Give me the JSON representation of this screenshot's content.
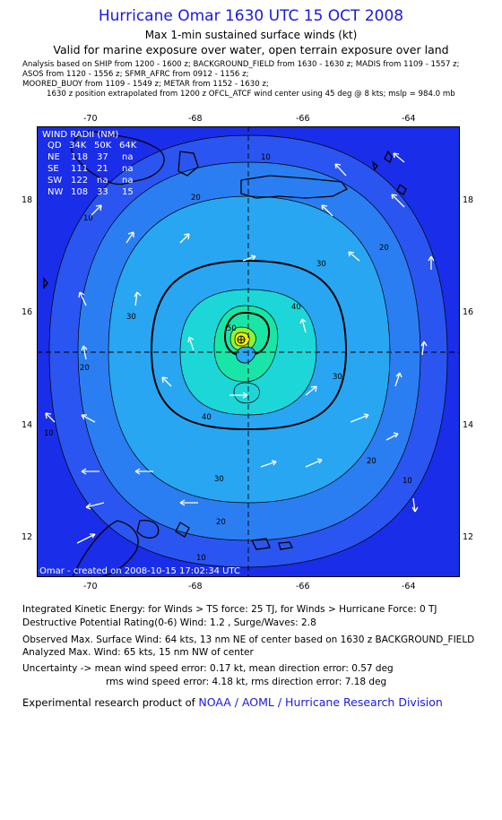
{
  "title": "Hurricane Omar 1630 UTC 15 OCT 2008",
  "subtitle": "Max 1-min sustained surface winds (kt)",
  "validity": "Valid for marine exposure over water, open terrain exposure over land",
  "analysis_lines": [
    "Analysis based on   SHIP from 1200 - 1600 z;   BACKGROUND_FIELD from 1630 - 1630 z;   MADIS from 1109 - 1557 z;",
    "ASOS from 1120 - 1556 z;   SFMR_AFRC from 0912 - 1156 z;",
    "MOORED_BUOY from 1109 - 1549 z;   METAR from 1152 - 1630 z;",
    "1630 z position extrapolated from 1200 z OFCL_ATCF wind center using 45 deg @ 8 kts;  mslp = 984.0 mb"
  ],
  "map": {
    "lon_ticks": [
      "-70",
      "-68",
      "-66",
      "-64"
    ],
    "lat_ticks": [
      "18",
      "16",
      "14",
      "12"
    ],
    "wind_radii": {
      "header": "WIND RADII (NM)",
      "columns": [
        "QD",
        "34K",
        "50K",
        "64K"
      ],
      "rows": [
        [
          "NE",
          "118",
          "37",
          "na"
        ],
        [
          "SE",
          "111",
          "21",
          "na"
        ],
        [
          "SW",
          "122",
          "na",
          "na"
        ],
        [
          "NW",
          "108",
          "33",
          "15"
        ]
      ]
    },
    "contour_labels": [
      "10",
      "10",
      "10",
      "10",
      "10",
      "20",
      "20",
      "20",
      "20",
      "20",
      "30",
      "30",
      "30",
      "30",
      "40",
      "40",
      "50"
    ],
    "credit": "Omar - created on 2008-10-15 17:02:34 UTC",
    "colors": {
      "ocean_outer": "#1a2de8",
      "band_10": "#2a55f0",
      "band_20": "#2a7ef2",
      "band_30": "#28a6f2",
      "band_40": "#1dd6d8",
      "band_50": "#19e6a6",
      "band_60": "#8ef23a",
      "band_64": "#f0f000"
    }
  },
  "footer": {
    "ike": "Integrated Kinetic Energy:  for Winds > TS force: 25 TJ,  for Winds > Hurricane Force: 0 TJ",
    "dpr": "Destructive Potential Rating(0-6)   Wind: 1.2 , Surge/Waves: 2.8",
    "observed": "Observed Max. Surface Wind: 64 kts, 13 nm NE of center based on 1630 z BACKGROUND_FIELD",
    "analyzed": "Analyzed Max. Wind: 65 kts, 15 nm NW of center",
    "uncert1": "Uncertainty -> mean wind speed error: 0.17 kt,   mean direction error: 0.57 deg",
    "uncert2": "rms wind speed error: 4.18 kt,   rms direction error: 7.18 deg",
    "product_prefix": "Experimental research product of",
    "product_link": "NOAA / AOML / Hurricane Research Division"
  }
}
